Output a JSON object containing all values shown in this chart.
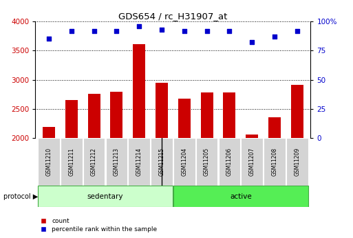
{
  "title": "GDS654 / rc_H31907_at",
  "samples": [
    "GSM11210",
    "GSM11211",
    "GSM11212",
    "GSM11213",
    "GSM11214",
    "GSM11215",
    "GSM11204",
    "GSM11205",
    "GSM11206",
    "GSM11207",
    "GSM11208",
    "GSM11209"
  ],
  "counts": [
    2195,
    2650,
    2760,
    2790,
    3610,
    2950,
    2680,
    2785,
    2785,
    2060,
    2360,
    2910
  ],
  "percentile_ranks": [
    85,
    92,
    92,
    92,
    96,
    93,
    92,
    92,
    92,
    82,
    87,
    92
  ],
  "groups": [
    "sedentary",
    "sedentary",
    "sedentary",
    "sedentary",
    "sedentary",
    "sedentary",
    "active",
    "active",
    "active",
    "active",
    "active",
    "active"
  ],
  "group_colors": {
    "sedentary": "#ccffcc",
    "active": "#55ee55"
  },
  "bar_color": "#cc0000",
  "dot_color": "#0000cc",
  "ylim_left": [
    2000,
    4000
  ],
  "ylim_right": [
    0,
    100
  ],
  "yticks_left": [
    2000,
    2500,
    3000,
    3500,
    4000
  ],
  "yticks_right": [
    0,
    25,
    50,
    75,
    100
  ],
  "background_color": "#ffffff",
  "protocol_label": "protocol",
  "legend_count": "count",
  "legend_percentile": "percentile rank within the sample",
  "sample_box_color": "#d4d4d4",
  "left_axis_color": "#cc0000",
  "right_axis_color": "#0000cc"
}
